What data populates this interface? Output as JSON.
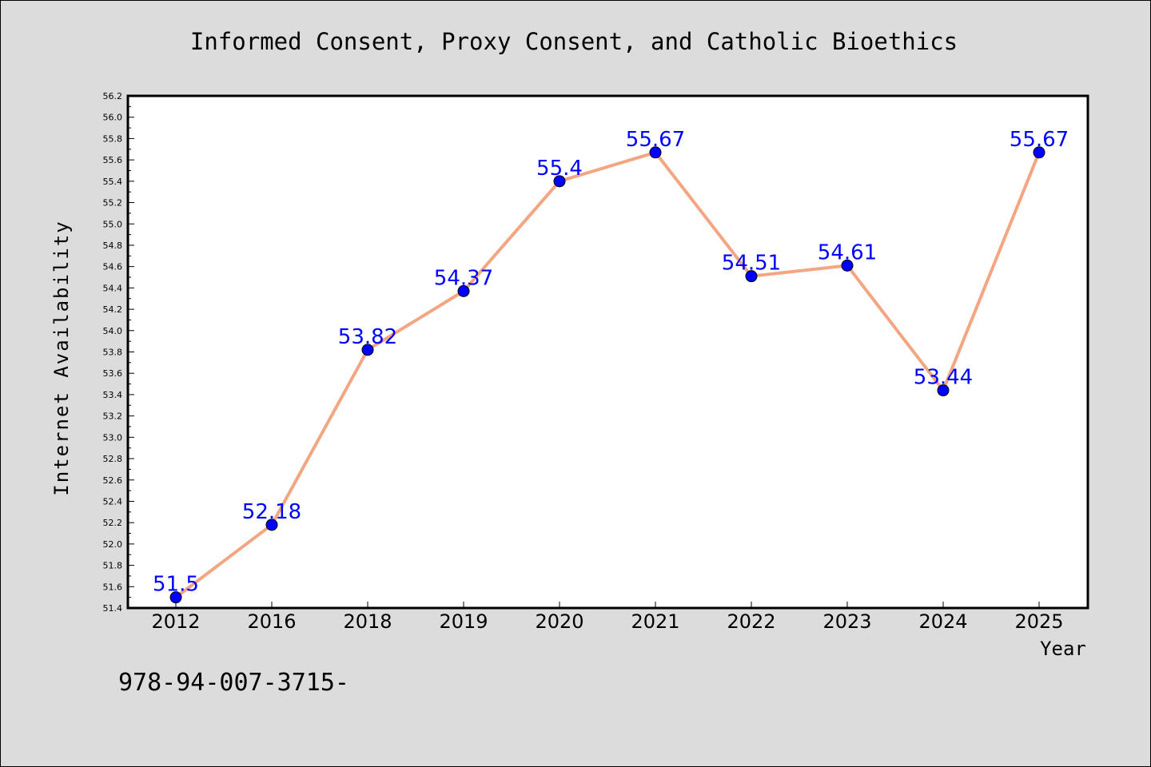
{
  "chart_data": {
    "type": "line",
    "title": "Informed Consent, Proxy Consent, and Catholic Bioethics",
    "xlabel": "Year",
    "ylabel": "Internet Availability",
    "categories": [
      "2012",
      "2016",
      "2018",
      "2019",
      "2020",
      "2021",
      "2022",
      "2023",
      "2024",
      "2025"
    ],
    "series": [
      {
        "values": [
          51.5,
          52.18,
          53.82,
          54.37,
          55.4,
          55.67,
          54.51,
          54.61,
          53.44,
          55.67
        ],
        "labels": [
          "51.5",
          "52.18",
          "53.82",
          "54.37",
          "55.4",
          "55.67",
          "54.51",
          "54.61",
          "53.44",
          "55.67"
        ]
      }
    ],
    "ylim": [
      51.4,
      56.2
    ],
    "y_ticks": [
      "51.4",
      "51.6",
      "51.8",
      "52.0",
      "52.2",
      "52.4",
      "52.6",
      "52.8",
      "53.0",
      "53.2",
      "53.4",
      "53.6",
      "53.8",
      "54.0",
      "54.2",
      "54.4",
      "54.6",
      "54.8",
      "55.0",
      "55.2",
      "55.4",
      "55.6",
      "55.8",
      "56.0",
      "56.2"
    ],
    "grid": false,
    "legend": "none",
    "colors": {
      "line": "#f4a582",
      "marker": "#0000ff",
      "data_label": "#0000ff",
      "plot_background": "#ffffff",
      "figure_background": "#dcdcdc"
    }
  },
  "footer_text": "978-94-007-3715-"
}
